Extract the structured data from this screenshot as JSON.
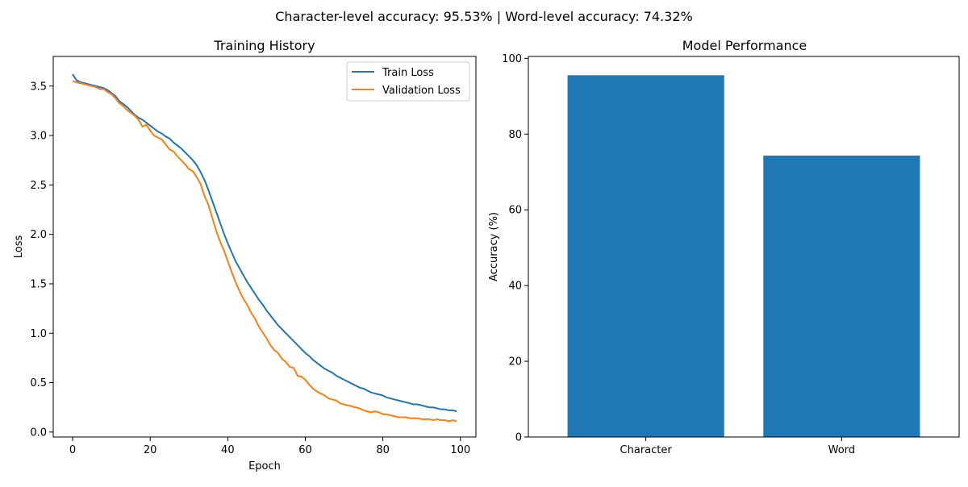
{
  "figure": {
    "suptitle": "Character-level accuracy: 95.53% | Word-level accuracy: 74.32%"
  },
  "colors": {
    "train": "#1f77b4",
    "validation": "#ff7f0e",
    "bar": "#1f77b4"
  },
  "chart_data": [
    {
      "type": "line",
      "title": "Training History",
      "xlabel": "Epoch",
      "ylabel": "Loss",
      "xlim": [
        -5,
        104
      ],
      "ylim": [
        -0.05,
        3.8
      ],
      "xticks": [
        0,
        20,
        40,
        60,
        80,
        100
      ],
      "yticks": [
        0.0,
        0.5,
        1.0,
        1.5,
        2.0,
        2.5,
        3.0,
        3.5
      ],
      "ytick_labels": [
        "0.0",
        "0.5",
        "1.0",
        "1.5",
        "2.0",
        "2.5",
        "3.0",
        "3.5"
      ],
      "legend": "top-right",
      "grid": false,
      "series": [
        {
          "name": "Train Loss",
          "color": "#1f77b4",
          "x": [
            0,
            1,
            2,
            3,
            4,
            5,
            6,
            7,
            8,
            9,
            10,
            11,
            12,
            13,
            14,
            15,
            16,
            17,
            18,
            19,
            20,
            21,
            22,
            23,
            24,
            25,
            26,
            27,
            28,
            29,
            30,
            31,
            32,
            33,
            34,
            35,
            36,
            37,
            38,
            39,
            40,
            41,
            42,
            43,
            44,
            45,
            46,
            47,
            48,
            49,
            50,
            51,
            52,
            53,
            54,
            55,
            56,
            57,
            58,
            59,
            60,
            61,
            62,
            63,
            64,
            65,
            66,
            67,
            68,
            69,
            70,
            71,
            72,
            73,
            74,
            75,
            76,
            77,
            78,
            79,
            80,
            81,
            82,
            83,
            84,
            85,
            86,
            87,
            88,
            89,
            90,
            91,
            92,
            93,
            94,
            95,
            96,
            97,
            98,
            99
          ],
          "values": [
            3.62,
            3.56,
            3.54,
            3.53,
            3.52,
            3.51,
            3.5,
            3.49,
            3.48,
            3.46,
            3.43,
            3.4,
            3.35,
            3.32,
            3.29,
            3.25,
            3.21,
            3.18,
            3.16,
            3.13,
            3.1,
            3.07,
            3.04,
            3.02,
            2.99,
            2.97,
            2.93,
            2.9,
            2.87,
            2.83,
            2.79,
            2.75,
            2.7,
            2.63,
            2.55,
            2.45,
            2.34,
            2.23,
            2.12,
            2.01,
            1.91,
            1.82,
            1.73,
            1.66,
            1.59,
            1.52,
            1.46,
            1.4,
            1.34,
            1.29,
            1.23,
            1.18,
            1.13,
            1.08,
            1.04,
            1.0,
            0.96,
            0.92,
            0.88,
            0.84,
            0.8,
            0.77,
            0.73,
            0.7,
            0.67,
            0.64,
            0.62,
            0.6,
            0.57,
            0.55,
            0.53,
            0.51,
            0.49,
            0.47,
            0.45,
            0.44,
            0.42,
            0.4,
            0.39,
            0.38,
            0.37,
            0.35,
            0.34,
            0.33,
            0.32,
            0.31,
            0.3,
            0.29,
            0.28,
            0.28,
            0.27,
            0.26,
            0.25,
            0.25,
            0.24,
            0.23,
            0.23,
            0.22,
            0.22,
            0.21
          ]
        },
        {
          "name": "Validation Loss",
          "color": "#ff7f0e",
          "x": [
            0,
            1,
            2,
            3,
            4,
            5,
            6,
            7,
            8,
            9,
            10,
            11,
            12,
            13,
            14,
            15,
            16,
            17,
            18,
            19,
            20,
            21,
            22,
            23,
            24,
            25,
            26,
            27,
            28,
            29,
            30,
            31,
            32,
            33,
            34,
            35,
            36,
            37,
            38,
            39,
            40,
            41,
            42,
            43,
            44,
            45,
            46,
            47,
            48,
            49,
            50,
            51,
            52,
            53,
            54,
            55,
            56,
            57,
            58,
            59,
            60,
            61,
            62,
            63,
            64,
            65,
            66,
            67,
            68,
            69,
            70,
            71,
            72,
            73,
            74,
            75,
            76,
            77,
            78,
            79,
            80,
            81,
            82,
            83,
            84,
            85,
            86,
            87,
            88,
            89,
            90,
            91,
            92,
            93,
            94,
            95,
            96,
            97,
            98,
            99
          ],
          "values": [
            3.55,
            3.54,
            3.53,
            3.52,
            3.51,
            3.5,
            3.49,
            3.47,
            3.47,
            3.44,
            3.42,
            3.38,
            3.33,
            3.3,
            3.26,
            3.23,
            3.2,
            3.16,
            3.09,
            3.11,
            3.05,
            3.0,
            2.98,
            2.96,
            2.91,
            2.86,
            2.84,
            2.79,
            2.75,
            2.71,
            2.66,
            2.64,
            2.58,
            2.51,
            2.39,
            2.3,
            2.17,
            2.04,
            1.93,
            1.84,
            1.73,
            1.62,
            1.52,
            1.43,
            1.35,
            1.29,
            1.21,
            1.15,
            1.07,
            1.01,
            0.95,
            0.88,
            0.83,
            0.8,
            0.74,
            0.71,
            0.66,
            0.65,
            0.57,
            0.56,
            0.53,
            0.48,
            0.44,
            0.41,
            0.39,
            0.37,
            0.34,
            0.33,
            0.32,
            0.29,
            0.28,
            0.27,
            0.26,
            0.25,
            0.24,
            0.22,
            0.21,
            0.2,
            0.21,
            0.2,
            0.18,
            0.18,
            0.17,
            0.16,
            0.15,
            0.15,
            0.15,
            0.14,
            0.14,
            0.14,
            0.13,
            0.13,
            0.13,
            0.12,
            0.13,
            0.12,
            0.12,
            0.11,
            0.12,
            0.11
          ]
        }
      ]
    },
    {
      "type": "bar",
      "title": "Model Performance",
      "xlabel": "",
      "ylabel": "Accuracy (%)",
      "ylim": [
        0,
        100.5
      ],
      "yticks": [
        0,
        20,
        40,
        60,
        80,
        100
      ],
      "categories": [
        "Character",
        "Word"
      ],
      "values": [
        95.53,
        74.32
      ],
      "color": "#1f77b4",
      "grid": false
    }
  ]
}
